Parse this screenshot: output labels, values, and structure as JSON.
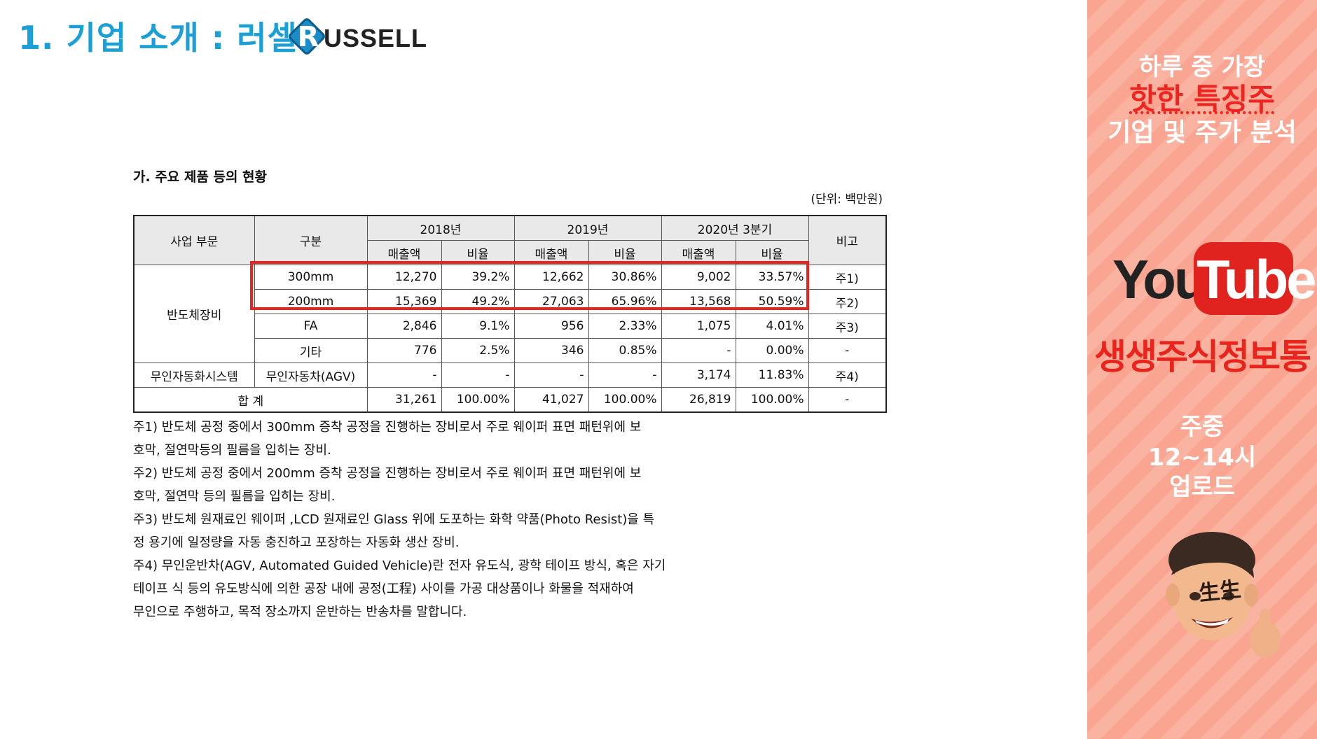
{
  "header": {
    "title": "1. 기업 소개 : 러셀",
    "logo_letter": "R",
    "logo_word": "USSELL"
  },
  "section": {
    "title": "가. 주요 제품 등의 현황",
    "unit": "(단위: 백만원)"
  },
  "table": {
    "head": {
      "segment": "사업 부문",
      "category": "구분",
      "years": [
        "2018년",
        "2019년",
        "2020년 3분기"
      ],
      "sales": "매출액",
      "ratio": "비율",
      "note": "비고"
    },
    "group1": "반도체장비",
    "rows": [
      {
        "category": "300mm",
        "s2018": "12,270",
        "r2018": "39.2%",
        "s2019": "12,662",
        "r2019": "30.86%",
        "s2020": "9,002",
        "r2020": "33.57%",
        "note": "주1)"
      },
      {
        "category": "200mm",
        "s2018": "15,369",
        "r2018": "49.2%",
        "s2019": "27,063",
        "r2019": "65.96%",
        "s2020": "13,568",
        "r2020": "50.59%",
        "note": "주2)"
      },
      {
        "category": "FA",
        "s2018": "2,846",
        "r2018": "9.1%",
        "s2019": "956",
        "r2019": "2.33%",
        "s2020": "1,075",
        "r2020": "4.01%",
        "note": "주3)"
      },
      {
        "category": "기타",
        "s2018": "776",
        "r2018": "2.5%",
        "s2019": "346",
        "r2019": "0.85%",
        "s2020": "-",
        "r2020": "0.00%",
        "note": "-"
      }
    ],
    "agv_row": {
      "segment": "무인자동화시스템",
      "category": "무인자동차(AGV)",
      "s2018": "-",
      "r2018": "-",
      "s2019": "-",
      "r2019": "-",
      "s2020": "3,174",
      "r2020": "11.83%",
      "note": "주4)"
    },
    "total_row": {
      "label": "합 계",
      "s2018": "31,261",
      "r2018": "100.00%",
      "s2019": "41,027",
      "r2019": "100.00%",
      "s2020": "26,819",
      "r2020": "100.00%",
      "note": "-"
    }
  },
  "notes": [
    "주1) 반도체 공정 중에서 300mm 증착 공정을 진행하는 장비로서 주로 웨이퍼 표면 패턴위에 보",
    "호막, 절연막등의 필름을 입히는 장비.",
    "주2) 반도체 공정 중에서 200mm 증착 공정을 진행하는 장비로서 주로 웨이퍼 표면 패턴위에 보",
    "호막, 절연막 등의 필름을 입히는 장비.",
    "주3) 반도체 원재료인 웨이퍼 ,LCD 원재료인 Glass 위에 도포하는 화학 약품(Photo Resist)을 특",
    "정 용기에 일정량을 자동 충진하고 포장하는 자동화 생산 장비.",
    "주4) 무인운반차(AGV, Automated Guided Vehicle)란 전자 유도식, 광학 테이프 방식, 혹은 자기",
    "테이프 식 등의 유도방식에 의한 공장 내에 공정(工程) 사이를 가공 대상품이나 화물을 적재하여",
    "무인으로 주행하고, 목적 장소까지 운반하는 반송차를 말합니다."
  ],
  "panel": {
    "line1": "하루 중 가장",
    "line2": "핫한 특징주",
    "line3": "기업 및 주가 분석",
    "youtube_you": "You",
    "youtube_tube": "Tube",
    "channel": "생생주식정보통",
    "upload1": "주중",
    "upload2": "12~14시",
    "upload3": "업로드",
    "avatar_text": "生生"
  },
  "colors": {
    "title_blue": "#1aa0d6",
    "highlight_red": "#e8241c",
    "panel_salmon": "#f9a591",
    "youtube_red": "#e0231e"
  }
}
